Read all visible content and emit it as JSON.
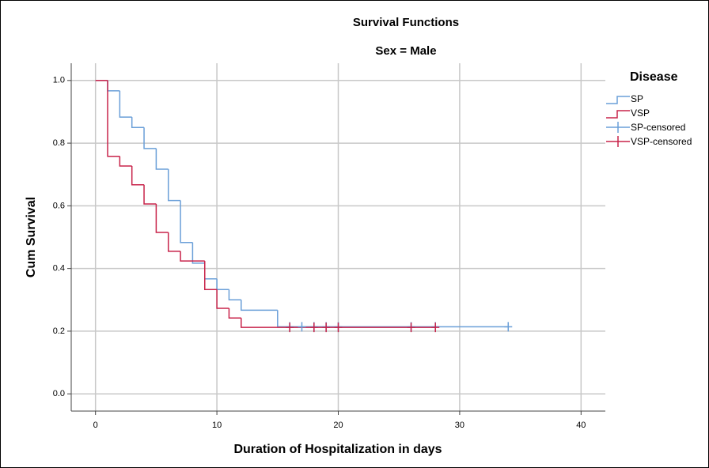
{
  "chart_data": {
    "type": "survival",
    "title": "Survival Functions",
    "subtitle": "Sex = Male",
    "x_label": "Duration of Hospitalization in days",
    "y_label": "Cum Survival",
    "legend_title": "Disease",
    "legend": "right",
    "grid": true,
    "xlim": [
      -2,
      42
    ],
    "ylim": [
      -0.055,
      1.055
    ],
    "xticks": [
      0,
      10,
      20,
      30,
      40
    ],
    "yticks": [
      {
        "value": 0,
        "label": "0.0"
      },
      0.2,
      0.4,
      0.6,
      0.8,
      {
        "value": 1,
        "label": "1.0"
      }
    ],
    "series": [
      {
        "name": "SP",
        "kind": "step",
        "color": "#6a9fd8",
        "x": [
          0,
          1,
          2,
          3,
          4,
          5,
          6,
          7,
          8,
          9,
          10,
          11,
          12,
          15,
          34
        ],
        "values": [
          1,
          0.967,
          0.883,
          0.85,
          0.783,
          0.717,
          0.617,
          0.483,
          0.417,
          0.367,
          0.333,
          0.3,
          0.267,
          0.214,
          0.214
        ]
      },
      {
        "name": "VSP",
        "kind": "step",
        "color": "#c8234a",
        "x": [
          0,
          1,
          2,
          3,
          4,
          5,
          6,
          7,
          9,
          10,
          11,
          12,
          28
        ],
        "values": [
          1,
          0.758,
          0.727,
          0.667,
          0.606,
          0.515,
          0.455,
          0.424,
          0.333,
          0.273,
          0.242,
          0.212,
          0.212
        ]
      },
      {
        "name": "SP-censored",
        "kind": "censored",
        "color": "#6a9fd8",
        "x": [
          16,
          17,
          18,
          19,
          20,
          26,
          28,
          34
        ],
        "values": [
          0.214,
          0.214,
          0.214,
          0.214,
          0.214,
          0.214,
          0.214,
          0.214
        ]
      },
      {
        "name": "VSP-censored",
        "kind": "censored",
        "color": "#c8234a",
        "x": [
          16,
          18,
          19,
          20,
          26,
          28
        ],
        "values": [
          0.212,
          0.212,
          0.212,
          0.212,
          0.212,
          0.212
        ]
      }
    ]
  }
}
